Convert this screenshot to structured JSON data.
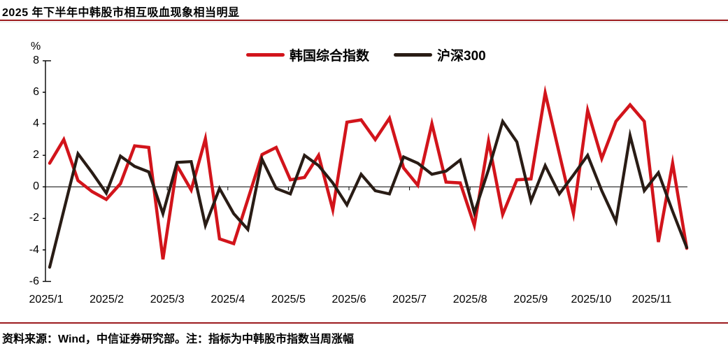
{
  "title": "2025 年下半年中韩股市相互吸血现象相当明显",
  "footer": {
    "source_note": "资料来源：Wind，中信证券研究部。注：指标为中韩股市指数当周涨幅"
  },
  "colors": {
    "accent_rule_red": "#9C1B1E",
    "korea_line_red": "#D2141B",
    "csi_line_black": "#291C15",
    "axis_black": "#000000"
  },
  "chart_data": {
    "type": "line",
    "title": "2025 年下半年中韩股市相互吸血现象相当明显",
    "unit_label": "%",
    "ylim": [
      -6,
      8
    ],
    "yticks": [
      8,
      6,
      4,
      2,
      0,
      -2,
      -4,
      -6
    ],
    "x_tick_labels": [
      "2025/1",
      "2025/2",
      "2025/3",
      "2025/4",
      "2025/5",
      "2025/6",
      "2025/7",
      "2025/8",
      "2025/9",
      "2025/10",
      "2025/11"
    ],
    "x_unit": "weekly (one point per week, Jan–Nov 2025)",
    "grid": false,
    "legend_position": "top-center",
    "series": [
      {
        "name": "韩国综合指数",
        "color": "#D2141B",
        "width": 4.5,
        "values": [
          1.5,
          3.0,
          0.4,
          -0.3,
          -0.8,
          0.2,
          2.6,
          2.5,
          -4.6,
          1.35,
          -0.2,
          3.05,
          -3.3,
          -3.6,
          -0.8,
          2.05,
          2.5,
          0.45,
          0.6,
          2.0,
          -1.45,
          4.1,
          4.25,
          3.0,
          4.35,
          1.2,
          0.1,
          4.0,
          0.3,
          0.25,
          -2.45,
          2.9,
          -1.75,
          0.45,
          0.5,
          5.95,
          2.1,
          -1.7,
          4.85,
          1.8,
          4.15,
          5.2,
          4.15,
          -3.5,
          1.5,
          -3.9
        ]
      },
      {
        "name": "沪深300",
        "color": "#291C15",
        "width": 4.2,
        "values": [
          -5.1,
          -1.5,
          2.1,
          0.9,
          -0.4,
          1.95,
          1.3,
          0.95,
          -1.7,
          1.55,
          1.6,
          -2.45,
          -0.1,
          -1.7,
          -2.7,
          1.75,
          -0.1,
          -0.45,
          2.0,
          1.35,
          0.25,
          -1.15,
          0.8,
          -0.25,
          -0.45,
          1.9,
          1.5,
          0.8,
          1.0,
          1.7,
          -1.65,
          1.1,
          4.15,
          2.85,
          -0.9,
          1.35,
          -0.45,
          0.75,
          2.0,
          -0.25,
          -2.2,
          3.25,
          -0.25,
          0.9,
          -1.55,
          -3.85
        ]
      }
    ]
  }
}
